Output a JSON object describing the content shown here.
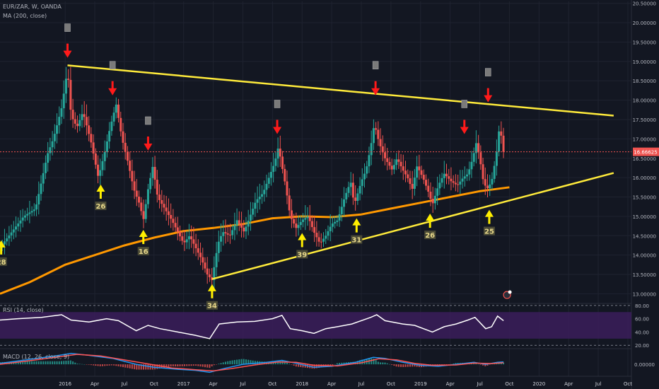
{
  "header": {
    "symbol_line": "EUR/ZAR, W, OANDA",
    "ma_line": "MA (200, close)",
    "rsi_line": "RSI (14, close)",
    "macd_line": "MACD (12, 26, close, 9)"
  },
  "colors": {
    "background": "#131722",
    "grid": "#1f2330",
    "up_candle": "#26a69a",
    "down_candle": "#ef5350",
    "ma": "#ff9800",
    "trendline": "#ffeb3b",
    "resistance_arrow": "#ff1a1a",
    "support_arrow": "#ffee00",
    "price_line": "#ef5350",
    "rsi_band": "#3b1d5a",
    "rsi_line": "#ffffff",
    "macd": "#2196f3",
    "signal": "#ff5252"
  },
  "chart_data": {
    "type": "candlestick",
    "timeframe": "W",
    "y_axis_labels": [
      "20.50000",
      "20.00000",
      "19.50000",
      "19.00000",
      "18.50000",
      "18.00000",
      "17.50000",
      "17.00000",
      "16.50000",
      "16.00000",
      "15.50000",
      "15.00000",
      "14.50000",
      "14.00000",
      "13.50000",
      "13.00000"
    ],
    "y_axis_values": [
      20.5,
      20.0,
      19.5,
      19.0,
      18.5,
      18.0,
      17.5,
      17.0,
      16.5,
      16.0,
      15.5,
      15.0,
      14.5,
      14.0,
      13.5,
      13.0
    ],
    "ylim": [
      12.77,
      20.55
    ],
    "x_axis_labels": [
      "2016",
      "Apr",
      "Jul",
      "Oct",
      "2017",
      "Apr",
      "Jul",
      "Oct",
      "2018",
      "Apr",
      "Jul",
      "Oct",
      "2019",
      "Apr",
      "Jul",
      "Oct",
      "2020",
      "Apr",
      "Jul",
      "Oct"
    ],
    "x_axis_values": [
      2016.0,
      2016.25,
      2016.5,
      2016.75,
      2017.0,
      2017.25,
      2017.5,
      2017.75,
      2018.0,
      2018.25,
      2018.5,
      2018.75,
      2019.0,
      2019.25,
      2019.5,
      2019.75,
      2020.0,
      2020.25,
      2020.5,
      2020.75
    ],
    "xlim": [
      2015.45,
      2020.78
    ],
    "current_price_label": "16.66625",
    "current_price": 16.66625,
    "price_path": [
      [
        2015.45,
        14.2
      ],
      [
        2015.55,
        14.6
      ],
      [
        2015.65,
        15.0
      ],
      [
        2015.75,
        15.2
      ],
      [
        2015.8,
        15.9
      ],
      [
        2015.85,
        16.6
      ],
      [
        2015.9,
        17.0
      ],
      [
        2015.97,
        17.8
      ],
      [
        2016.02,
        18.8
      ],
      [
        2016.05,
        17.6
      ],
      [
        2016.1,
        17.3
      ],
      [
        2016.15,
        17.7
      ],
      [
        2016.22,
        16.9
      ],
      [
        2016.28,
        16.0
      ],
      [
        2016.33,
        16.6
      ],
      [
        2016.38,
        17.3
      ],
      [
        2016.43,
        17.9
      ],
      [
        2016.48,
        17.0
      ],
      [
        2016.53,
        16.4
      ],
      [
        2016.58,
        15.7
      ],
      [
        2016.63,
        15.3
      ],
      [
        2016.66,
        14.9
      ],
      [
        2016.7,
        15.7
      ],
      [
        2016.74,
        16.3
      ],
      [
        2016.78,
        15.5
      ],
      [
        2016.84,
        15.2
      ],
      [
        2016.9,
        14.9
      ],
      [
        2016.95,
        14.6
      ],
      [
        2017.0,
        14.3
      ],
      [
        2017.05,
        14.5
      ],
      [
        2017.1,
        14.2
      ],
      [
        2017.15,
        13.9
      ],
      [
        2017.2,
        13.5
      ],
      [
        2017.24,
        13.35
      ],
      [
        2017.29,
        14.3
      ],
      [
        2017.33,
        14.6
      ],
      [
        2017.39,
        14.5
      ],
      [
        2017.45,
        14.9
      ],
      [
        2017.51,
        14.6
      ],
      [
        2017.56,
        15.0
      ],
      [
        2017.61,
        15.4
      ],
      [
        2017.67,
        15.6
      ],
      [
        2017.72,
        16.0
      ],
      [
        2017.77,
        16.4
      ],
      [
        2017.8,
        16.8
      ],
      [
        2017.86,
        15.8
      ],
      [
        2017.9,
        15.0
      ],
      [
        2017.95,
        14.7
      ],
      [
        2018.0,
        14.9
      ],
      [
        2018.05,
        15.0
      ],
      [
        2018.1,
        14.6
      ],
      [
        2018.15,
        14.3
      ],
      [
        2018.2,
        14.5
      ],
      [
        2018.25,
        14.8
      ],
      [
        2018.3,
        14.9
      ],
      [
        2018.36,
        15.5
      ],
      [
        2018.41,
        15.9
      ],
      [
        2018.44,
        15.3
      ],
      [
        2018.5,
        15.9
      ],
      [
        2018.54,
        16.2
      ],
      [
        2018.58,
        16.8
      ],
      [
        2018.61,
        17.4
      ],
      [
        2018.65,
        16.9
      ],
      [
        2018.7,
        16.5
      ],
      [
        2018.76,
        16.2
      ],
      [
        2018.8,
        16.5
      ],
      [
        2018.85,
        16.2
      ],
      [
        2018.89,
        16.0
      ],
      [
        2018.93,
        15.7
      ],
      [
        2018.97,
        16.3
      ],
      [
        2019.02,
        16.0
      ],
      [
        2019.07,
        15.6
      ],
      [
        2019.1,
        15.3
      ],
      [
        2019.15,
        15.8
      ],
      [
        2019.2,
        16.1
      ],
      [
        2019.26,
        15.9
      ],
      [
        2019.31,
        15.8
      ],
      [
        2019.36,
        16.0
      ],
      [
        2019.4,
        16.1
      ],
      [
        2019.44,
        16.5
      ],
      [
        2019.47,
        16.9
      ],
      [
        2019.5,
        16.5
      ],
      [
        2019.53,
        15.9
      ],
      [
        2019.56,
        15.7
      ],
      [
        2019.6,
        15.9
      ],
      [
        2019.64,
        16.6
      ],
      [
        2019.66,
        17.2
      ],
      [
        2019.68,
        17.1
      ],
      [
        2019.7,
        16.66625
      ]
    ],
    "ma200_path": [
      [
        2015.45,
        13.0
      ],
      [
        2015.7,
        13.3
      ],
      [
        2016.0,
        13.75
      ],
      [
        2016.5,
        14.25
      ],
      [
        2016.75,
        14.45
      ],
      [
        2017.0,
        14.62
      ],
      [
        2017.25,
        14.7
      ],
      [
        2017.5,
        14.8
      ],
      [
        2017.75,
        14.95
      ],
      [
        2018.0,
        15.0
      ],
      [
        2018.25,
        14.98
      ],
      [
        2018.5,
        15.05
      ],
      [
        2018.75,
        15.2
      ],
      [
        2019.0,
        15.35
      ],
      [
        2019.25,
        15.5
      ],
      [
        2019.5,
        15.65
      ],
      [
        2019.75,
        15.75
      ]
    ],
    "trendlines": [
      {
        "from": [
          2016.02,
          18.9
        ],
        "to": [
          2020.63,
          17.6
        ]
      },
      {
        "from": [
          2017.24,
          13.38
        ],
        "to": [
          2020.63,
          16.12
        ]
      }
    ],
    "resistance_markers": [
      {
        "x": 2016.02,
        "y": 18.95
      },
      {
        "x": 2016.4,
        "y": 17.98
      },
      {
        "x": 2016.7,
        "y": 16.55
      },
      {
        "x": 2017.79,
        "y": 16.98
      },
      {
        "x": 2018.62,
        "y": 17.98
      },
      {
        "x": 2019.37,
        "y": 16.98
      },
      {
        "x": 2019.57,
        "y": 17.8
      }
    ],
    "support_markers": [
      {
        "x": 2015.46,
        "y": 14.38,
        "label": "28"
      },
      {
        "x": 2016.3,
        "y": 15.82,
        "label": "26"
      },
      {
        "x": 2016.66,
        "y": 14.65,
        "label": "16"
      },
      {
        "x": 2017.24,
        "y": 13.25,
        "label": "34"
      },
      {
        "x": 2018.0,
        "y": 14.57,
        "label": "39"
      },
      {
        "x": 2018.46,
        "y": 14.95,
        "label": "31"
      },
      {
        "x": 2019.08,
        "y": 15.07,
        "label": "26"
      },
      {
        "x": 2019.58,
        "y": 15.17,
        "label": "25"
      }
    ],
    "rsi": {
      "label": "RSI (14, close)",
      "axis_labels": [
        "80.00",
        "60.00",
        "40.00",
        "20.00"
      ],
      "axis_values": [
        80,
        60,
        40,
        20
      ],
      "ylim": [
        16,
        83
      ],
      "band": [
        30,
        70
      ],
      "path": [
        [
          2015.45,
          58
        ],
        [
          2015.6,
          60
        ],
        [
          2015.8,
          62
        ],
        [
          2015.97,
          66
        ],
        [
          2016.05,
          58
        ],
        [
          2016.2,
          55
        ],
        [
          2016.35,
          60
        ],
        [
          2016.45,
          57
        ],
        [
          2016.6,
          42
        ],
        [
          2016.7,
          50
        ],
        [
          2016.8,
          45
        ],
        [
          2016.95,
          40
        ],
        [
          2017.1,
          35
        ],
        [
          2017.22,
          30
        ],
        [
          2017.3,
          52
        ],
        [
          2017.45,
          55
        ],
        [
          2017.6,
          56
        ],
        [
          2017.75,
          60
        ],
        [
          2017.83,
          65
        ],
        [
          2017.9,
          45
        ],
        [
          2018.0,
          42
        ],
        [
          2018.1,
          38
        ],
        [
          2018.2,
          45
        ],
        [
          2018.3,
          48
        ],
        [
          2018.42,
          52
        ],
        [
          2018.58,
          62
        ],
        [
          2018.63,
          66
        ],
        [
          2018.7,
          57
        ],
        [
          2018.85,
          52
        ],
        [
          2018.95,
          50
        ],
        [
          2019.1,
          40
        ],
        [
          2019.2,
          48
        ],
        [
          2019.3,
          52
        ],
        [
          2019.4,
          58
        ],
        [
          2019.46,
          62
        ],
        [
          2019.55,
          45
        ],
        [
          2019.6,
          48
        ],
        [
          2019.65,
          64
        ],
        [
          2019.7,
          57
        ]
      ]
    },
    "macd": {
      "label": "MACD (12, 26, close, 9)",
      "axis_labels": [
        "0.00000"
      ],
      "axis_values": [
        0
      ],
      "ylim": [
        -0.6,
        0.75
      ],
      "macd_path": [
        [
          2015.45,
          0.05
        ],
        [
          2015.7,
          0.25
        ],
        [
          2015.95,
          0.45
        ],
        [
          2016.05,
          0.55
        ],
        [
          2016.2,
          0.45
        ],
        [
          2016.4,
          0.3
        ],
        [
          2016.6,
          0.0
        ],
        [
          2016.75,
          -0.15
        ],
        [
          2016.95,
          -0.25
        ],
        [
          2017.1,
          -0.3
        ],
        [
          2017.22,
          -0.4
        ],
        [
          2017.35,
          -0.2
        ],
        [
          2017.5,
          0.0
        ],
        [
          2017.7,
          0.1
        ],
        [
          2017.83,
          0.2
        ],
        [
          2017.95,
          0.05
        ],
        [
          2018.1,
          -0.15
        ],
        [
          2018.25,
          -0.1
        ],
        [
          2018.45,
          0.1
        ],
        [
          2018.6,
          0.35
        ],
        [
          2018.7,
          0.3
        ],
        [
          2018.85,
          0.1
        ],
        [
          2019.0,
          -0.05
        ],
        [
          2019.15,
          -0.1
        ],
        [
          2019.3,
          0.0
        ],
        [
          2019.45,
          0.1
        ],
        [
          2019.55,
          0.0
        ],
        [
          2019.65,
          0.1
        ],
        [
          2019.7,
          0.12
        ]
      ],
      "signal_path": [
        [
          2015.45,
          0.0
        ],
        [
          2015.7,
          0.18
        ],
        [
          2015.95,
          0.38
        ],
        [
          2016.1,
          0.5
        ],
        [
          2016.3,
          0.42
        ],
        [
          2016.5,
          0.22
        ],
        [
          2016.7,
          0.02
        ],
        [
          2016.9,
          -0.18
        ],
        [
          2017.1,
          -0.27
        ],
        [
          2017.25,
          -0.33
        ],
        [
          2017.4,
          -0.22
        ],
        [
          2017.6,
          -0.03
        ],
        [
          2017.8,
          0.12
        ],
        [
          2017.95,
          0.1
        ],
        [
          2018.1,
          -0.05
        ],
        [
          2018.3,
          -0.08
        ],
        [
          2018.5,
          0.08
        ],
        [
          2018.65,
          0.28
        ],
        [
          2018.8,
          0.22
        ],
        [
          2018.95,
          0.05
        ],
        [
          2019.1,
          -0.05
        ],
        [
          2019.3,
          -0.03
        ],
        [
          2019.45,
          0.06
        ],
        [
          2019.6,
          0.04
        ],
        [
          2019.7,
          0.08
        ]
      ]
    }
  }
}
